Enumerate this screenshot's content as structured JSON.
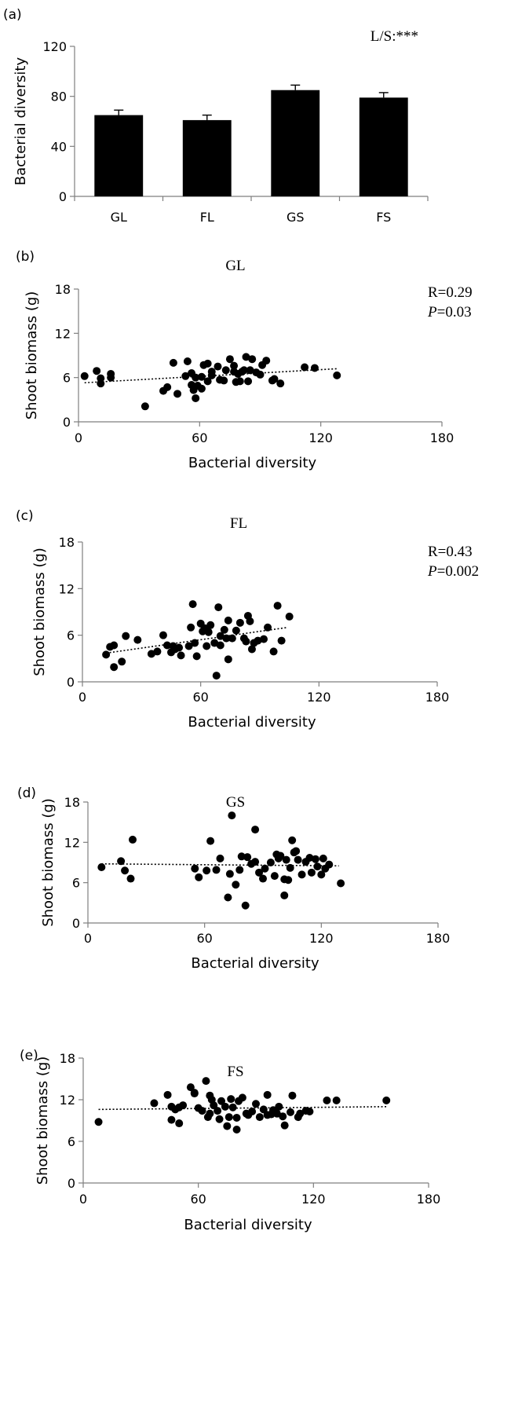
{
  "chart_data": [
    {
      "type": "bar",
      "panel_label": "(a)",
      "title": "",
      "annotation": "L/S:***",
      "xlabel": "",
      "ylabel": "Bacterial diversity",
      "categories": [
        "GL",
        "FL",
        "GS",
        "FS"
      ],
      "values": [
        65,
        61,
        85,
        79
      ],
      "error": [
        4,
        4,
        4,
        4
      ],
      "ylim": [
        0,
        120
      ],
      "yticks": [
        0,
        40,
        80,
        120
      ]
    },
    {
      "type": "scatter",
      "panel_label": "(b)",
      "title": "GL",
      "stat_r": "R=0.29",
      "stat_p_symbol": "P",
      "stat_p_value": "=0.03",
      "xlabel": "Bacterial diversity",
      "ylabel": "Shoot biomass (g)",
      "xlim": [
        0,
        180
      ],
      "ylim": [
        0,
        18
      ],
      "xticks": [
        0,
        60,
        120,
        180
      ],
      "yticks": [
        0,
        6,
        12,
        18
      ],
      "trend": [
        [
          3,
          5.3
        ],
        [
          128,
          7.2
        ]
      ],
      "points": [
        [
          3,
          6.2
        ],
        [
          9,
          6.9
        ],
        [
          11,
          5.9
        ],
        [
          11,
          5.2
        ],
        [
          16,
          6.5
        ],
        [
          16,
          6.0
        ],
        [
          33,
          2.1
        ],
        [
          42,
          4.2
        ],
        [
          44,
          4.7
        ],
        [
          47,
          8.0
        ],
        [
          49,
          3.8
        ],
        [
          53,
          6.2
        ],
        [
          54,
          8.2
        ],
        [
          56,
          6.6
        ],
        [
          56,
          5.0
        ],
        [
          57,
          4.3
        ],
        [
          58,
          3.2
        ],
        [
          58,
          6.0
        ],
        [
          59,
          4.9
        ],
        [
          61,
          6.1
        ],
        [
          61,
          4.5
        ],
        [
          62,
          7.7
        ],
        [
          64,
          5.5
        ],
        [
          64,
          7.9
        ],
        [
          66,
          6.3
        ],
        [
          66,
          6.8
        ],
        [
          69,
          7.5
        ],
        [
          70,
          5.7
        ],
        [
          72,
          5.6
        ],
        [
          73,
          7.0
        ],
        [
          75,
          8.5
        ],
        [
          77,
          6.8
        ],
        [
          77,
          7.6
        ],
        [
          78,
          5.4
        ],
        [
          79,
          6.5
        ],
        [
          80,
          5.5
        ],
        [
          81,
          6.8
        ],
        [
          82,
          7.0
        ],
        [
          83,
          8.8
        ],
        [
          84,
          5.5
        ],
        [
          85,
          7.0
        ],
        [
          86,
          8.5
        ],
        [
          88,
          6.7
        ],
        [
          90,
          6.4
        ],
        [
          91,
          7.7
        ],
        [
          93,
          8.3
        ],
        [
          96,
          5.6
        ],
        [
          97,
          5.8
        ],
        [
          100,
          5.2
        ],
        [
          112,
          7.4
        ],
        [
          117,
          7.3
        ],
        [
          128,
          6.3
        ]
      ]
    },
    {
      "type": "scatter",
      "panel_label": "(c)",
      "title": "FL",
      "stat_r": "R=0.43",
      "stat_p_symbol": "P",
      "stat_p_value": "=0.002",
      "xlabel": "Bacterial diversity",
      "ylabel": "Shoot biomass (g)",
      "xlim": [
        0,
        180
      ],
      "ylim": [
        0,
        18
      ],
      "xticks": [
        0,
        60,
        120,
        180
      ],
      "yticks": [
        0,
        6,
        12,
        18
      ],
      "trend": [
        [
          12,
          3.7
        ],
        [
          104,
          7.0
        ]
      ],
      "points": [
        [
          12,
          3.5
        ],
        [
          14,
          4.5
        ],
        [
          16,
          4.7
        ],
        [
          16,
          1.9
        ],
        [
          20,
          2.6
        ],
        [
          22,
          5.9
        ],
        [
          28,
          5.4
        ],
        [
          35,
          3.6
        ],
        [
          38,
          3.9
        ],
        [
          41,
          6.0
        ],
        [
          43,
          4.7
        ],
        [
          45,
          3.8
        ],
        [
          46,
          4.6
        ],
        [
          47,
          4.2
        ],
        [
          49,
          4.4
        ],
        [
          50,
          3.4
        ],
        [
          54,
          4.6
        ],
        [
          55,
          7.0
        ],
        [
          56,
          10.0
        ],
        [
          57,
          5.0
        ],
        [
          58,
          3.3
        ],
        [
          60,
          7.5
        ],
        [
          61,
          6.5
        ],
        [
          62,
          6.9
        ],
        [
          63,
          4.6
        ],
        [
          64,
          6.4
        ],
        [
          65,
          7.3
        ],
        [
          67,
          5.0
        ],
        [
          68,
          0.8
        ],
        [
          69,
          9.6
        ],
        [
          70,
          4.7
        ],
        [
          70,
          5.9
        ],
        [
          72,
          6.7
        ],
        [
          73,
          5.6
        ],
        [
          74,
          2.9
        ],
        [
          74,
          7.9
        ],
        [
          76,
          5.6
        ],
        [
          78,
          6.6
        ],
        [
          80,
          7.6
        ],
        [
          82,
          5.6
        ],
        [
          83,
          5.2
        ],
        [
          84,
          8.5
        ],
        [
          85,
          7.8
        ],
        [
          86,
          4.2
        ],
        [
          87,
          5.0
        ],
        [
          89,
          5.3
        ],
        [
          92,
          5.5
        ],
        [
          94,
          7.0
        ],
        [
          97,
          3.9
        ],
        [
          99,
          9.8
        ],
        [
          101,
          5.3
        ],
        [
          105,
          8.4
        ]
      ]
    },
    {
      "type": "scatter",
      "panel_label": "(d)",
      "title": "GS",
      "xlabel": "Bacterial diversity",
      "ylabel": "Shoot biomass (g)",
      "xlim": [
        0,
        180
      ],
      "ylim": [
        0,
        18
      ],
      "xticks": [
        0,
        60,
        120,
        180
      ],
      "yticks": [
        0,
        6,
        12,
        18
      ],
      "trend": [
        [
          7,
          8.8
        ],
        [
          129,
          8.5
        ]
      ],
      "points": [
        [
          7,
          8.3
        ],
        [
          17,
          9.2
        ],
        [
          19,
          7.8
        ],
        [
          22,
          6.6
        ],
        [
          23,
          12.4
        ],
        [
          55,
          8.1
        ],
        [
          57,
          6.8
        ],
        [
          61,
          7.8
        ],
        [
          63,
          12.2
        ],
        [
          66,
          7.9
        ],
        [
          68,
          9.6
        ],
        [
          72,
          3.8
        ],
        [
          73,
          7.3
        ],
        [
          74,
          16.0
        ],
        [
          76,
          5.7
        ],
        [
          78,
          7.9
        ],
        [
          79,
          9.9
        ],
        [
          81,
          2.6
        ],
        [
          82,
          9.8
        ],
        [
          84,
          8.8
        ],
        [
          86,
          13.9
        ],
        [
          86,
          9.1
        ],
        [
          88,
          7.5
        ],
        [
          90,
          6.6
        ],
        [
          91,
          8.1
        ],
        [
          94,
          9.0
        ],
        [
          96,
          7.0
        ],
        [
          97,
          10.2
        ],
        [
          98,
          9.6
        ],
        [
          99,
          10.0
        ],
        [
          101,
          6.5
        ],
        [
          101,
          4.1
        ],
        [
          102,
          9.4
        ],
        [
          103,
          6.4
        ],
        [
          104,
          8.2
        ],
        [
          105,
          12.3
        ],
        [
          106,
          10.5
        ],
        [
          107,
          10.7
        ],
        [
          108,
          9.4
        ],
        [
          110,
          7.2
        ],
        [
          112,
          9.1
        ],
        [
          114,
          9.7
        ],
        [
          115,
          7.5
        ],
        [
          117,
          9.5
        ],
        [
          118,
          8.4
        ],
        [
          120,
          7.2
        ],
        [
          121,
          9.6
        ],
        [
          122,
          8.1
        ],
        [
          124,
          8.7
        ],
        [
          130,
          5.9
        ]
      ]
    },
    {
      "type": "scatter",
      "panel_label": "(e)",
      "title": "FS",
      "xlabel": "Bacterial diversity",
      "ylabel": "Shoot biomass (g)",
      "xlim": [
        0,
        180
      ],
      "ylim": [
        0,
        18
      ],
      "xticks": [
        0,
        60,
        120,
        180
      ],
      "yticks": [
        0,
        6,
        12,
        18
      ],
      "trend": [
        [
          8,
          10.6
        ],
        [
          158,
          11.0
        ]
      ],
      "points": [
        [
          8,
          8.8
        ],
        [
          37,
          11.5
        ],
        [
          44,
          12.7
        ],
        [
          46,
          9.1
        ],
        [
          46,
          11.0
        ],
        [
          48,
          10.6
        ],
        [
          50,
          8.6
        ],
        [
          50,
          10.9
        ],
        [
          52,
          11.2
        ],
        [
          56,
          13.8
        ],
        [
          58,
          13.0
        ],
        [
          58,
          12.9
        ],
        [
          60,
          10.8
        ],
        [
          62,
          10.4
        ],
        [
          64,
          14.7
        ],
        [
          65,
          9.5
        ],
        [
          66,
          10.0
        ],
        [
          66,
          12.6
        ],
        [
          67,
          12.0
        ],
        [
          68,
          11.2
        ],
        [
          70,
          10.4
        ],
        [
          71,
          9.2
        ],
        [
          72,
          11.8
        ],
        [
          74,
          11.0
        ],
        [
          75,
          8.2
        ],
        [
          76,
          9.5
        ],
        [
          77,
          12.1
        ],
        [
          78,
          10.9
        ],
        [
          80,
          9.4
        ],
        [
          80,
          7.7
        ],
        [
          81,
          11.8
        ],
        [
          83,
          12.3
        ],
        [
          85,
          10.0
        ],
        [
          86,
          9.8
        ],
        [
          88,
          10.3
        ],
        [
          90,
          11.4
        ],
        [
          92,
          9.5
        ],
        [
          94,
          10.6
        ],
        [
          96,
          9.8
        ],
        [
          96,
          12.7
        ],
        [
          98,
          9.9
        ],
        [
          99,
          10.5
        ],
        [
          101,
          10.0
        ],
        [
          102,
          11.0
        ],
        [
          104,
          9.6
        ],
        [
          105,
          8.3
        ],
        [
          108,
          10.2
        ],
        [
          109,
          12.6
        ],
        [
          112,
          9.5
        ],
        [
          113,
          10.0
        ],
        [
          116,
          10.4
        ],
        [
          118,
          10.3
        ],
        [
          127,
          11.9
        ],
        [
          132,
          11.9
        ],
        [
          158,
          11.9
        ]
      ]
    }
  ]
}
